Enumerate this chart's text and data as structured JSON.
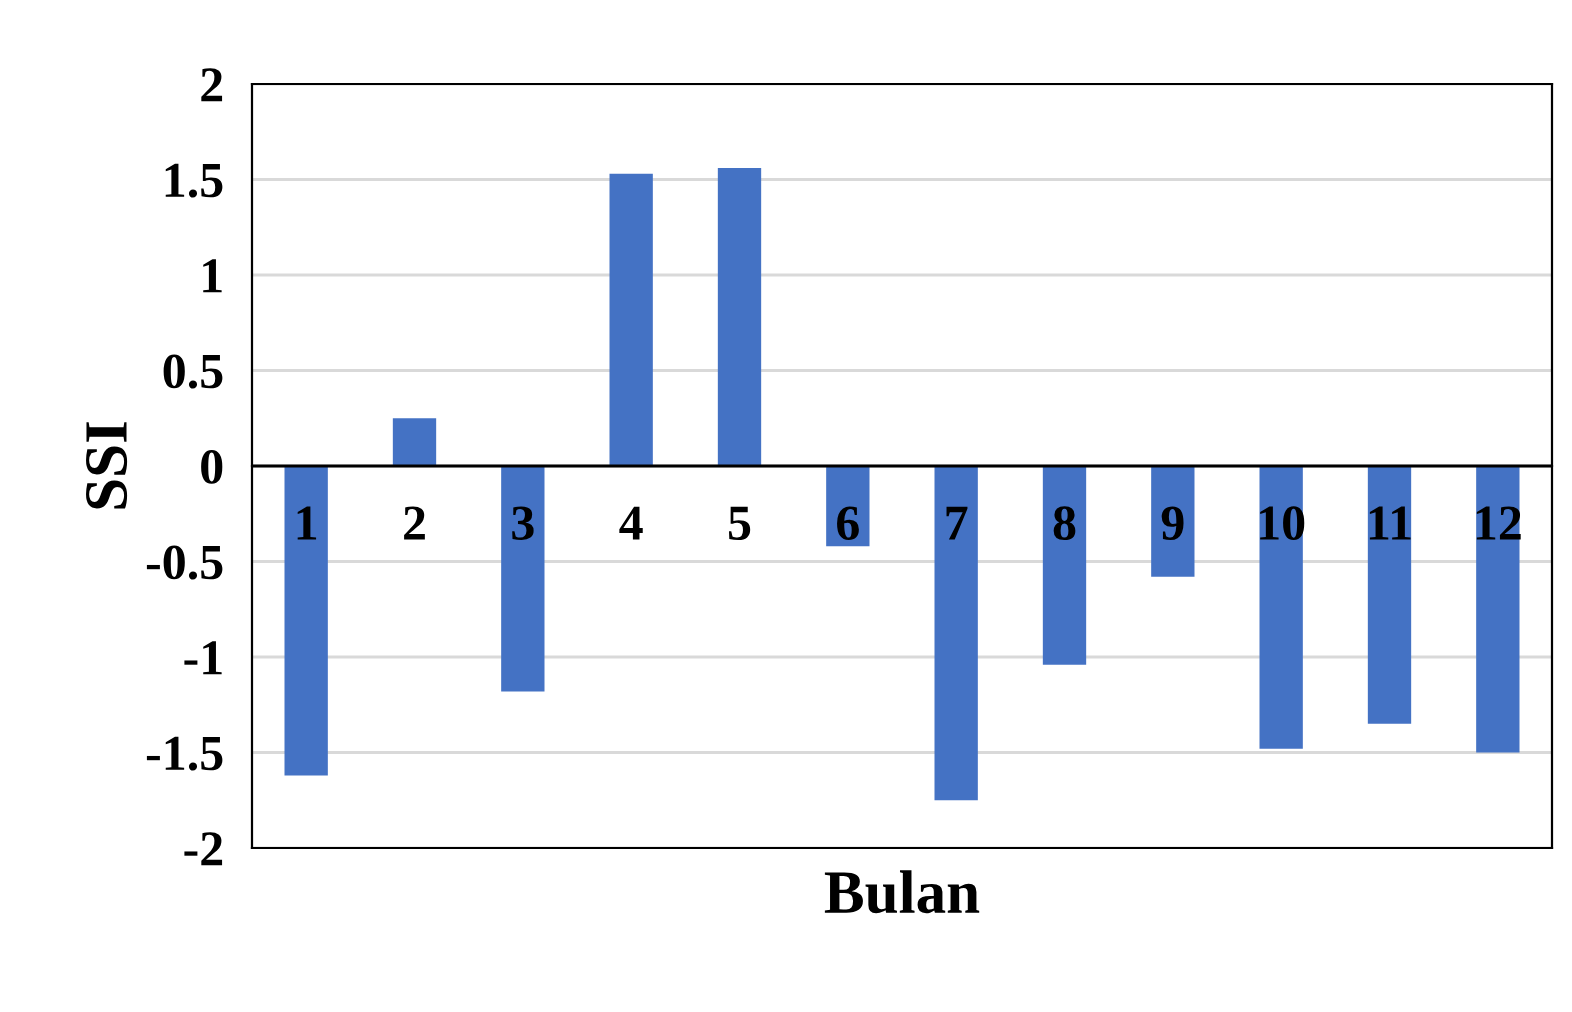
{
  "chart_data": {
    "type": "bar",
    "xlabel": "Bulan",
    "ylabel": "SSI",
    "categories": [
      "1",
      "2",
      "3",
      "4",
      "5",
      "6",
      "7",
      "8",
      "9",
      "10",
      "11",
      "12"
    ],
    "values": [
      -1.62,
      0.25,
      -1.18,
      1.53,
      1.56,
      -0.42,
      -1.75,
      -1.04,
      -0.58,
      -1.48,
      -1.35,
      -1.5
    ],
    "color": "#4472c4",
    "ylim": [
      -2,
      2
    ],
    "yticks": [
      -2,
      -1.5,
      -1,
      -0.5,
      0,
      0.5,
      1,
      1.5,
      2
    ],
    "grid": "y",
    "legend": false
  }
}
